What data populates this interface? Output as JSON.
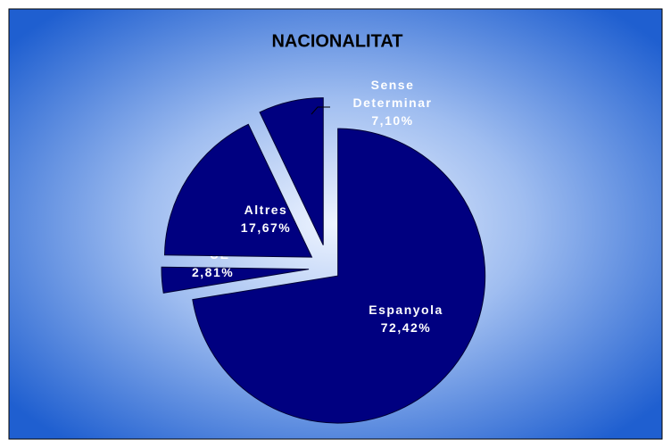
{
  "chart_data": {
    "type": "pie",
    "title": "NACIONALITAT",
    "categories": [
      "Espanyola",
      "UE",
      "Altres",
      "Sense Determinar"
    ],
    "values": [
      72.42,
      2.81,
      17.67,
      7.1
    ],
    "value_labels": [
      "72,42%",
      "2,81%",
      "17,67%",
      "7,10%"
    ],
    "color": "#000080"
  }
}
